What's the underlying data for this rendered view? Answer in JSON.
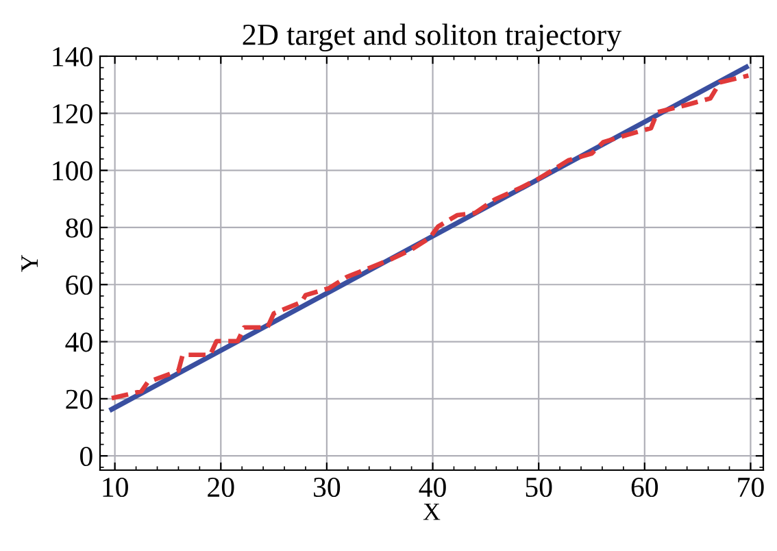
{
  "chart_data": {
    "type": "line",
    "title": "2D target and soliton trajectory",
    "xlabel": "X",
    "ylabel": "Y",
    "xlim": [
      8.6,
      71.2
    ],
    "ylim": [
      -5,
      140
    ],
    "xticks": [
      10,
      20,
      30,
      40,
      50,
      60,
      70
    ],
    "yticks": [
      0,
      20,
      40,
      60,
      80,
      100,
      120,
      140
    ],
    "grid": true,
    "series": [
      {
        "color": "#3a4fa0",
        "line_style": "solid",
        "x": [
          9.7,
          69.6
        ],
        "values": [
          16.3,
          136.2
        ]
      },
      {
        "color": "#e03a3a",
        "line_style": "dashed",
        "x": [
          9.7,
          12.5,
          13.1,
          16.0,
          16.4,
          19.0,
          19.6,
          21.6,
          22.2,
          24.4,
          25.0,
          27.6,
          28.0,
          30.2,
          31.9,
          34.1,
          36.2,
          38.0,
          39.7,
          40.5,
          42.3,
          44.0,
          45.9,
          48.3,
          50.0,
          51.8,
          52.8,
          55.0,
          56.1,
          58.3,
          60.6,
          61.2,
          63.8,
          66.2,
          67.1,
          69.8
        ],
        "values": [
          20.2,
          22.6,
          25.8,
          29.8,
          35.4,
          35.4,
          40.2,
          40.2,
          45.0,
          45.0,
          49.9,
          53.8,
          56.3,
          58.7,
          62.7,
          65.9,
          69.1,
          72.3,
          76.3,
          80.3,
          84.3,
          85.1,
          89.9,
          93.9,
          97.1,
          101.2,
          103.5,
          105.9,
          109.9,
          112.4,
          114.8,
          120.4,
          122.8,
          125.2,
          130.8,
          133.2
        ]
      }
    ]
  }
}
